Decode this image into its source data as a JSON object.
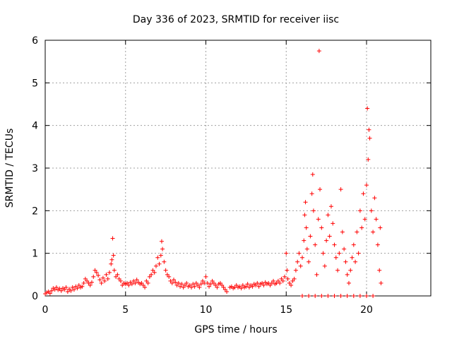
{
  "chart_data": {
    "type": "scatter",
    "title": "Day 336 of 2023, SRMTID for receiver iisc",
    "xlabel": "GPS time / hours",
    "ylabel": "SRMTID / TECUs",
    "xlim": [
      0,
      24
    ],
    "ylim": [
      0,
      6
    ],
    "xticks": [
      0,
      5,
      10,
      15,
      20
    ],
    "yticks": [
      0,
      1,
      2,
      3,
      4,
      5,
      6
    ],
    "xtick_labels": [
      "0",
      "5",
      "10",
      "15",
      "20"
    ],
    "ytick_labels": [
      "0",
      "1",
      "2",
      "3",
      "4",
      "5",
      "6"
    ],
    "grid": true,
    "marker": "+",
    "marker_color": "#ff0000",
    "series": [
      {
        "name": "SRMTID",
        "points": [
          [
            0.0,
            0.05
          ],
          [
            0.1,
            0.08
          ],
          [
            0.2,
            0.1
          ],
          [
            0.3,
            0.06
          ],
          [
            0.4,
            0.12
          ],
          [
            0.5,
            0.18
          ],
          [
            0.6,
            0.15
          ],
          [
            0.7,
            0.2
          ],
          [
            0.8,
            0.14
          ],
          [
            0.9,
            0.17
          ],
          [
            1.0,
            0.12
          ],
          [
            1.1,
            0.18
          ],
          [
            1.2,
            0.15
          ],
          [
            1.3,
            0.2
          ],
          [
            1.4,
            0.1
          ],
          [
            1.5,
            0.16
          ],
          [
            1.6,
            0.12
          ],
          [
            1.7,
            0.2
          ],
          [
            1.8,
            0.15
          ],
          [
            1.9,
            0.22
          ],
          [
            2.0,
            0.18
          ],
          [
            2.1,
            0.25
          ],
          [
            2.2,
            0.2
          ],
          [
            2.3,
            0.22
          ],
          [
            2.4,
            0.3
          ],
          [
            2.5,
            0.4
          ],
          [
            2.6,
            0.35
          ],
          [
            2.7,
            0.3
          ],
          [
            2.8,
            0.25
          ],
          [
            2.9,
            0.32
          ],
          [
            3.0,
            0.45
          ],
          [
            3.1,
            0.6
          ],
          [
            3.2,
            0.55
          ],
          [
            3.3,
            0.48
          ],
          [
            3.4,
            0.38
          ],
          [
            3.5,
            0.3
          ],
          [
            3.6,
            0.42
          ],
          [
            3.7,
            0.35
          ],
          [
            3.8,
            0.5
          ],
          [
            3.9,
            0.4
          ],
          [
            4.0,
            0.55
          ],
          [
            4.1,
            0.75
          ],
          [
            4.15,
            0.85
          ],
          [
            4.2,
            1.35
          ],
          [
            4.25,
            0.95
          ],
          [
            4.3,
            0.6
          ],
          [
            4.4,
            0.45
          ],
          [
            4.5,
            0.5
          ],
          [
            4.6,
            0.4
          ],
          [
            4.7,
            0.35
          ],
          [
            4.8,
            0.25
          ],
          [
            4.9,
            0.3
          ],
          [
            5.0,
            0.28
          ],
          [
            5.1,
            0.3
          ],
          [
            5.2,
            0.25
          ],
          [
            5.3,
            0.32
          ],
          [
            5.4,
            0.28
          ],
          [
            5.5,
            0.35
          ],
          [
            5.6,
            0.3
          ],
          [
            5.7,
            0.38
          ],
          [
            5.8,
            0.32
          ],
          [
            5.9,
            0.28
          ],
          [
            6.0,
            0.3
          ],
          [
            6.1,
            0.25
          ],
          [
            6.2,
            0.2
          ],
          [
            6.3,
            0.35
          ],
          [
            6.4,
            0.3
          ],
          [
            6.5,
            0.45
          ],
          [
            6.6,
            0.5
          ],
          [
            6.7,
            0.6
          ],
          [
            6.8,
            0.55
          ],
          [
            6.9,
            0.7
          ],
          [
            7.0,
            0.9
          ],
          [
            7.1,
            0.75
          ],
          [
            7.2,
            0.95
          ],
          [
            7.25,
            1.28
          ],
          [
            7.3,
            1.1
          ],
          [
            7.4,
            0.8
          ],
          [
            7.5,
            0.6
          ],
          [
            7.6,
            0.5
          ],
          [
            7.7,
            0.45
          ],
          [
            7.8,
            0.35
          ],
          [
            7.9,
            0.3
          ],
          [
            8.0,
            0.38
          ],
          [
            8.1,
            0.32
          ],
          [
            8.2,
            0.25
          ],
          [
            8.3,
            0.3
          ],
          [
            8.4,
            0.22
          ],
          [
            8.5,
            0.28
          ],
          [
            8.6,
            0.2
          ],
          [
            8.7,
            0.25
          ],
          [
            8.8,
            0.3
          ],
          [
            8.9,
            0.22
          ],
          [
            9.0,
            0.25
          ],
          [
            9.1,
            0.2
          ],
          [
            9.2,
            0.28
          ],
          [
            9.3,
            0.22
          ],
          [
            9.4,
            0.3
          ],
          [
            9.5,
            0.25
          ],
          [
            9.6,
            0.2
          ],
          [
            9.7,
            0.28
          ],
          [
            9.8,
            0.35
          ],
          [
            9.9,
            0.3
          ],
          [
            10.0,
            0.45
          ],
          [
            10.1,
            0.3
          ],
          [
            10.2,
            0.22
          ],
          [
            10.3,
            0.28
          ],
          [
            10.4,
            0.35
          ],
          [
            10.5,
            0.3
          ],
          [
            10.6,
            0.25
          ],
          [
            10.7,
            0.2
          ],
          [
            10.8,
            0.28
          ],
          [
            10.9,
            0.3
          ],
          [
            11.0,
            0.25
          ],
          [
            11.1,
            0.2
          ],
          [
            11.2,
            0.15
          ],
          [
            11.3,
            0.1
          ],
          [
            11.5,
            0.2
          ],
          [
            11.6,
            0.22
          ],
          [
            11.7,
            0.18
          ],
          [
            11.8,
            0.2
          ],
          [
            11.9,
            0.25
          ],
          [
            12.0,
            0.2
          ],
          [
            12.1,
            0.22
          ],
          [
            12.2,
            0.18
          ],
          [
            12.3,
            0.25
          ],
          [
            12.4,
            0.2
          ],
          [
            12.5,
            0.22
          ],
          [
            12.6,
            0.28
          ],
          [
            12.7,
            0.2
          ],
          [
            12.8,
            0.25
          ],
          [
            12.9,
            0.22
          ],
          [
            13.0,
            0.28
          ],
          [
            13.1,
            0.25
          ],
          [
            13.2,
            0.3
          ],
          [
            13.3,
            0.22
          ],
          [
            13.4,
            0.28
          ],
          [
            13.5,
            0.3
          ],
          [
            13.6,
            0.25
          ],
          [
            13.7,
            0.32
          ],
          [
            13.8,
            0.28
          ],
          [
            13.9,
            0.3
          ],
          [
            14.0,
            0.25
          ],
          [
            14.1,
            0.3
          ],
          [
            14.2,
            0.35
          ],
          [
            14.3,
            0.28
          ],
          [
            14.4,
            0.3
          ],
          [
            14.5,
            0.35
          ],
          [
            14.6,
            0.3
          ],
          [
            14.7,
            0.4
          ],
          [
            14.8,
            0.35
          ],
          [
            14.9,
            0.45
          ],
          [
            15.0,
            1.0
          ],
          [
            15.05,
            0.6
          ],
          [
            15.1,
            0.4
          ],
          [
            15.2,
            0.3
          ],
          [
            15.3,
            0.25
          ],
          [
            15.4,
            0.35
          ],
          [
            15.5,
            0.4
          ],
          [
            15.6,
            0.6
          ],
          [
            15.7,
            0.8
          ],
          [
            15.8,
            1.0
          ],
          [
            15.9,
            0.7
          ],
          [
            16.0,
            0.9
          ],
          [
            16.1,
            1.3
          ],
          [
            16.15,
            1.9
          ],
          [
            16.2,
            2.2
          ],
          [
            16.25,
            1.6
          ],
          [
            16.3,
            1.1
          ],
          [
            16.4,
            0.8
          ],
          [
            16.5,
            1.4
          ],
          [
            16.6,
            2.4
          ],
          [
            16.65,
            2.85
          ],
          [
            16.7,
            2.0
          ],
          [
            16.8,
            1.2
          ],
          [
            16.9,
            0.5
          ],
          [
            17.0,
            1.8
          ],
          [
            17.05,
            5.75
          ],
          [
            17.1,
            2.5
          ],
          [
            17.2,
            1.6
          ],
          [
            17.3,
            1.0
          ],
          [
            17.4,
            0.7
          ],
          [
            17.5,
            1.3
          ],
          [
            17.6,
            1.9
          ],
          [
            17.7,
            1.4
          ],
          [
            17.8,
            2.1
          ],
          [
            17.9,
            1.7
          ],
          [
            18.0,
            1.2
          ],
          [
            18.1,
            0.9
          ],
          [
            18.2,
            0.6
          ],
          [
            18.3,
            1.0
          ],
          [
            18.4,
            2.5
          ],
          [
            18.5,
            1.5
          ],
          [
            18.6,
            1.1
          ],
          [
            18.7,
            0.8
          ],
          [
            18.8,
            0.5
          ],
          [
            18.9,
            0.3
          ],
          [
            19.0,
            0.6
          ],
          [
            19.1,
            0.9
          ],
          [
            19.2,
            1.2
          ],
          [
            19.3,
            0.8
          ],
          [
            19.4,
            1.5
          ],
          [
            19.5,
            1.0
          ],
          [
            19.6,
            2.0
          ],
          [
            19.7,
            1.6
          ],
          [
            19.8,
            2.4
          ],
          [
            19.9,
            1.8
          ],
          [
            20.0,
            2.6
          ],
          [
            20.05,
            4.4
          ],
          [
            20.1,
            3.2
          ],
          [
            20.15,
            3.9
          ],
          [
            20.2,
            3.7
          ],
          [
            20.3,
            2.0
          ],
          [
            20.4,
            1.5
          ],
          [
            20.5,
            2.3
          ],
          [
            20.6,
            1.8
          ],
          [
            20.7,
            1.2
          ],
          [
            20.8,
            0.6
          ],
          [
            20.85,
            1.6
          ],
          [
            20.9,
            0.3
          ],
          [
            16.0,
            0.0
          ],
          [
            16.4,
            0.0
          ],
          [
            16.8,
            0.0
          ],
          [
            17.2,
            0.0
          ],
          [
            17.6,
            0.0
          ],
          [
            18.0,
            0.0
          ],
          [
            18.4,
            0.0
          ],
          [
            18.8,
            0.0
          ],
          [
            19.2,
            0.0
          ],
          [
            19.6,
            0.0
          ],
          [
            20.0,
            0.0
          ],
          [
            20.4,
            0.0
          ]
        ]
      }
    ]
  }
}
